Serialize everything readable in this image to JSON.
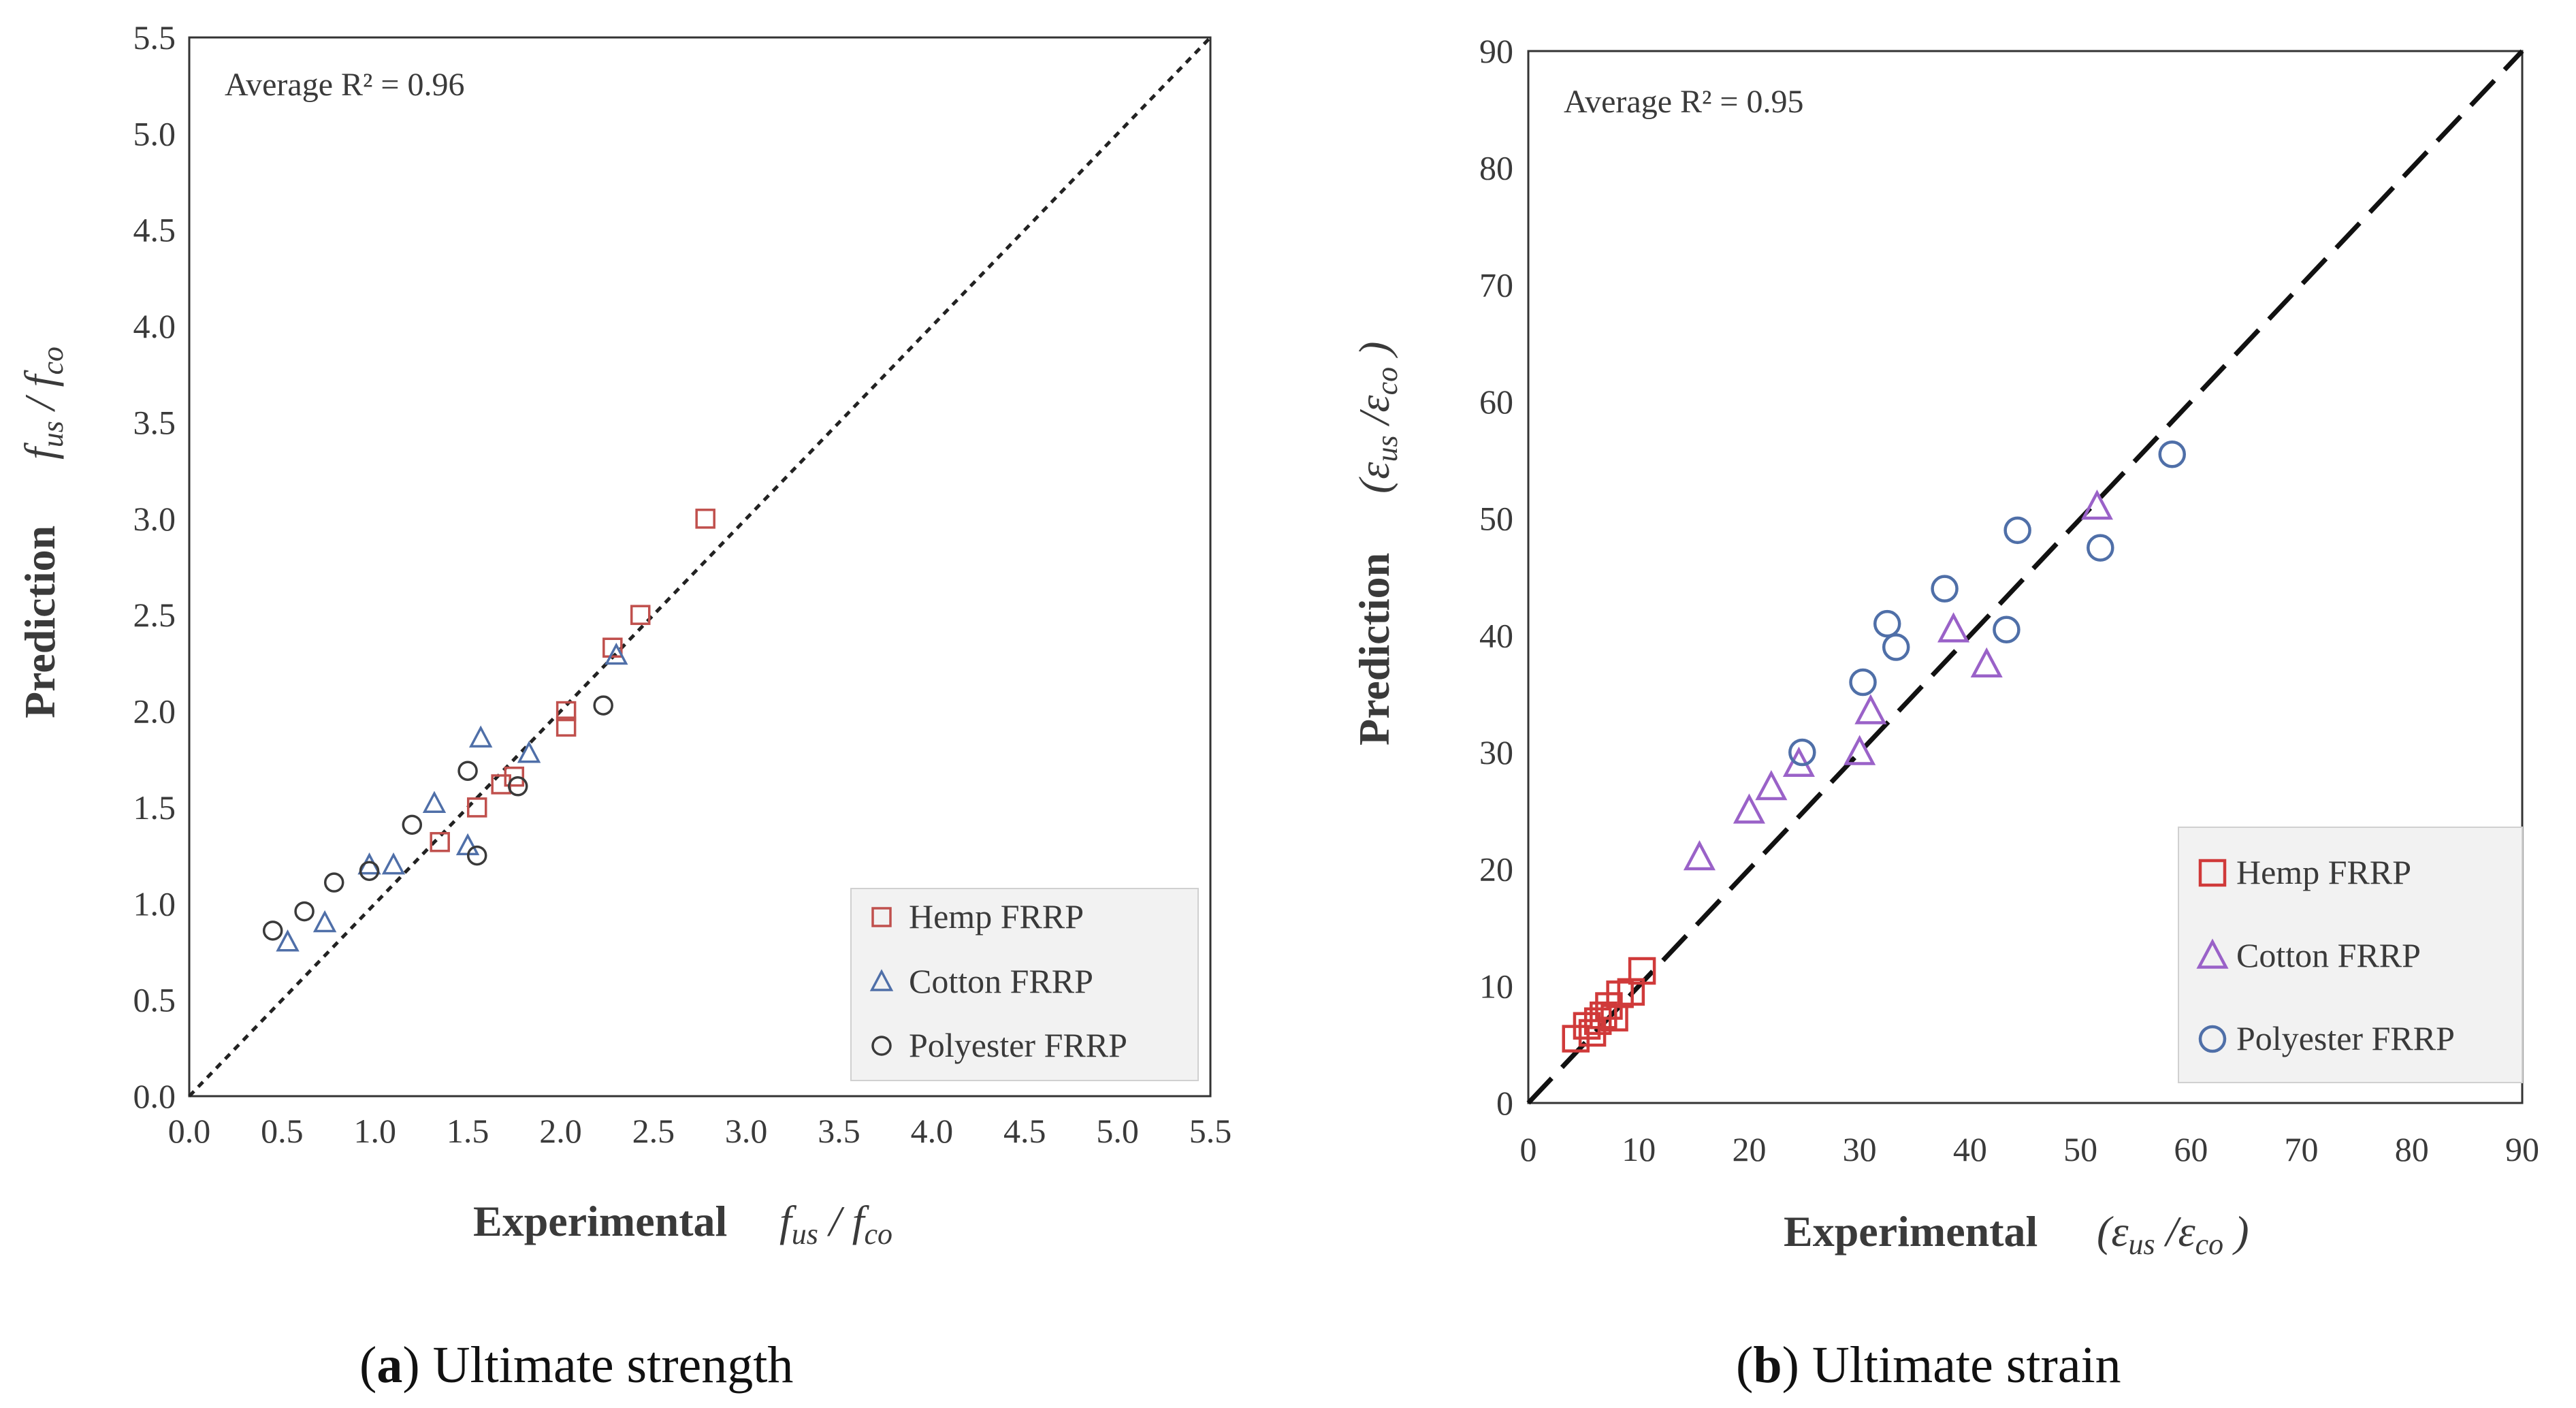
{
  "chart_data": [
    {
      "type": "scatter",
      "panel_letter": "a",
      "caption": "Ultimate strength",
      "annotation": "Average R² = 0.96",
      "xlabel_main": "Experimental",
      "xlabel_expr": "fus / fco",
      "ylabel_main": "Prediction",
      "ylabel_expr": "fus / fco",
      "xlim": [
        0,
        5.5
      ],
      "ylim": [
        0,
        5.5
      ],
      "ticks": [
        "0.0",
        "0.5",
        "1.0",
        "1.5",
        "2.0",
        "2.5",
        "3.0",
        "3.5",
        "4.0",
        "4.5",
        "5.0",
        "5.5"
      ],
      "reference_line": "y = x, dotted",
      "legend_position": "bottom-right",
      "series": [
        {
          "name": "Hemp FRRP",
          "marker": "square",
          "color": "#c0504d",
          "points": [
            [
              1.35,
              1.32
            ],
            [
              1.55,
              1.5
            ],
            [
              1.68,
              1.62
            ],
            [
              1.75,
              1.66
            ],
            [
              2.03,
              1.92
            ],
            [
              2.03,
              2.0
            ],
            [
              2.28,
              2.33
            ],
            [
              2.43,
              2.5
            ],
            [
              2.78,
              3.0
            ]
          ]
        },
        {
          "name": "Cotton FRRP",
          "marker": "triangle",
          "color": "#4f6fa8",
          "points": [
            [
              0.53,
              0.8
            ],
            [
              0.73,
              0.9
            ],
            [
              0.97,
              1.2
            ],
            [
              1.1,
              1.2
            ],
            [
              1.32,
              1.52
            ],
            [
              1.5,
              1.3
            ],
            [
              1.57,
              1.86
            ],
            [
              1.83,
              1.78
            ],
            [
              2.3,
              2.29
            ]
          ]
        },
        {
          "name": "Polyester FRRP",
          "marker": "circle",
          "color": "#3a3a3a",
          "points": [
            [
              0.45,
              0.86
            ],
            [
              0.62,
              0.96
            ],
            [
              0.78,
              1.11
            ],
            [
              0.97,
              1.17
            ],
            [
              1.2,
              1.41
            ],
            [
              1.5,
              1.69
            ],
            [
              1.55,
              1.25
            ],
            [
              1.77,
              1.61
            ],
            [
              2.23,
              2.03
            ]
          ]
        }
      ]
    },
    {
      "type": "scatter",
      "panel_letter": "b",
      "caption": "Ultimate strain",
      "annotation": "Average R² = 0.95",
      "xlabel_main": "Experimental",
      "xlabel_expr": "(εus /εco )",
      "ylabel_main": "Prediction",
      "ylabel_expr": "(εus /εco )",
      "xlim": [
        0,
        90
      ],
      "ylim": [
        0,
        90
      ],
      "ticks": [
        "0",
        "10",
        "20",
        "30",
        "40",
        "50",
        "60",
        "70",
        "80",
        "90"
      ],
      "reference_line": "y = x, dashed",
      "legend_position": "bottom-right",
      "series": [
        {
          "name": "Hemp FRRP",
          "marker": "square",
          "color": "#d03a3a",
          "points": [
            [
              4.3,
              5.5
            ],
            [
              5.3,
              6.6
            ],
            [
              5.8,
              6.0
            ],
            [
              6.3,
              7.0
            ],
            [
              6.8,
              7.5
            ],
            [
              7.3,
              8.3
            ],
            [
              7.8,
              7.3
            ],
            [
              8.3,
              9.3
            ],
            [
              9.3,
              9.5
            ],
            [
              10.3,
              11.3
            ]
          ]
        },
        {
          "name": "Cotton FRRP",
          "marker": "triangle",
          "color": "#9a62c8",
          "points": [
            [
              15.5,
              21.0
            ],
            [
              20.0,
              25.0
            ],
            [
              22.0,
              27.0
            ],
            [
              24.5,
              29.0
            ],
            [
              30.0,
              30.0
            ],
            [
              31.0,
              33.5
            ],
            [
              38.5,
              40.5
            ],
            [
              41.5,
              37.5
            ],
            [
              51.5,
              51.0
            ]
          ]
        },
        {
          "name": "Polyester FRRP",
          "marker": "circle",
          "color": "#4f6fa8",
          "points": [
            [
              24.8,
              30.0
            ],
            [
              30.3,
              36.0
            ],
            [
              32.5,
              41.0
            ],
            [
              33.3,
              39.0
            ],
            [
              37.7,
              44.0
            ],
            [
              43.3,
              40.5
            ],
            [
              44.3,
              49.0
            ],
            [
              51.8,
              47.5
            ],
            [
              58.3,
              55.5
            ]
          ]
        }
      ]
    }
  ]
}
